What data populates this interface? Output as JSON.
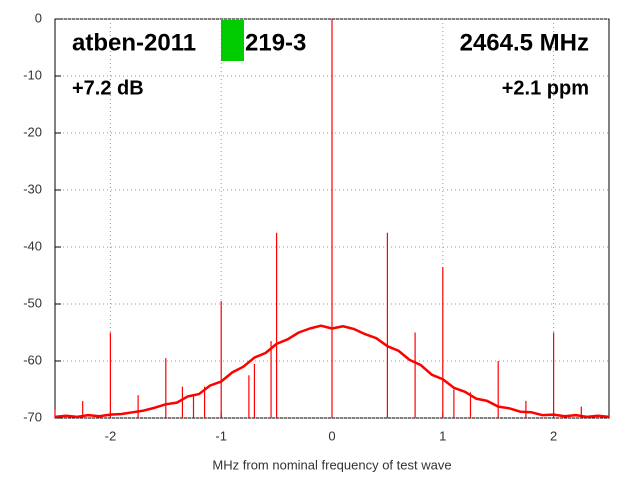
{
  "chart_data": {
    "type": "spectrum",
    "title_left": [
      "atben-2011",
      "219-3"
    ],
    "frequency": "2464.5 MHz",
    "gain": "+7.2 dB",
    "offset": "+2.1 ppm",
    "x_label": "MHz from nominal frequency of test wave",
    "color": "#ff0000",
    "marker_color": "#00cc00",
    "grid": true,
    "xlim": [
      -2.5,
      2.5
    ],
    "ylim": [
      -70,
      0
    ],
    "xticks": [
      -2,
      -1,
      0,
      1,
      2
    ],
    "yticks": [
      0,
      -10,
      -20,
      -30,
      -40,
      -50,
      -60,
      -70
    ],
    "x": [
      -2.5,
      -2.4,
      -2.3,
      -2.2,
      -2.1,
      -2.0,
      -1.9,
      -1.8,
      -1.7,
      -1.6,
      -1.5,
      -1.4,
      -1.3,
      -1.2,
      -1.1,
      -1.0,
      -0.9,
      -0.8,
      -0.7,
      -0.6,
      -0.5,
      -0.4,
      -0.3,
      -0.2,
      -0.1,
      0,
      0.1,
      0.2,
      0.3,
      0.4,
      0.5,
      0.6,
      0.7,
      0.8,
      0.9,
      1.0,
      1.1,
      1.2,
      1.3,
      1.4,
      1.5,
      1.6,
      1.7,
      1.8,
      1.9,
      2.0,
      2.1,
      2.2,
      2.3,
      2.4,
      2.5
    ],
    "values": [
      -69.8,
      -69.6,
      -69.8,
      -69.5,
      -69.7,
      -69.4,
      -69.3,
      -69.0,
      -68.7,
      -68.2,
      -67.6,
      -67.3,
      -66.2,
      -65.8,
      -64.3,
      -63.6,
      -62.0,
      -61.0,
      -59.4,
      -58.6,
      -57.0,
      -56.2,
      -55.0,
      -54.3,
      -53.8,
      -54.3,
      -53.9,
      -54.4,
      -55.3,
      -56.0,
      -57.4,
      -58.2,
      -59.8,
      -60.7,
      -62.4,
      -63.2,
      -64.7,
      -65.4,
      -66.6,
      -67.0,
      -68.0,
      -68.3,
      -68.9,
      -69.0,
      -69.5,
      -69.4,
      -69.7,
      -69.5,
      -69.8,
      -69.6,
      -69.8
    ],
    "spikes": {
      "x": [
        -2.5,
        -2.25,
        -2,
        -1.75,
        -1.5,
        -1.35,
        -1.25,
        -1.15,
        -1,
        -0.75,
        -0.7,
        -0.55,
        -0.5,
        0,
        0.5,
        0.75,
        1,
        1.1,
        1.25,
        1.5,
        1.75,
        2,
        2.25
      ],
      "values": [
        -68.5,
        -67,
        -55,
        -66,
        -59.5,
        -64.5,
        -66,
        -64.5,
        -49.5,
        -62.5,
        -60.5,
        -56.5,
        -37.5,
        0,
        -37.5,
        -55,
        -43.5,
        -65,
        -65.5,
        -60,
        -67,
        -55,
        -68
      ]
    }
  }
}
